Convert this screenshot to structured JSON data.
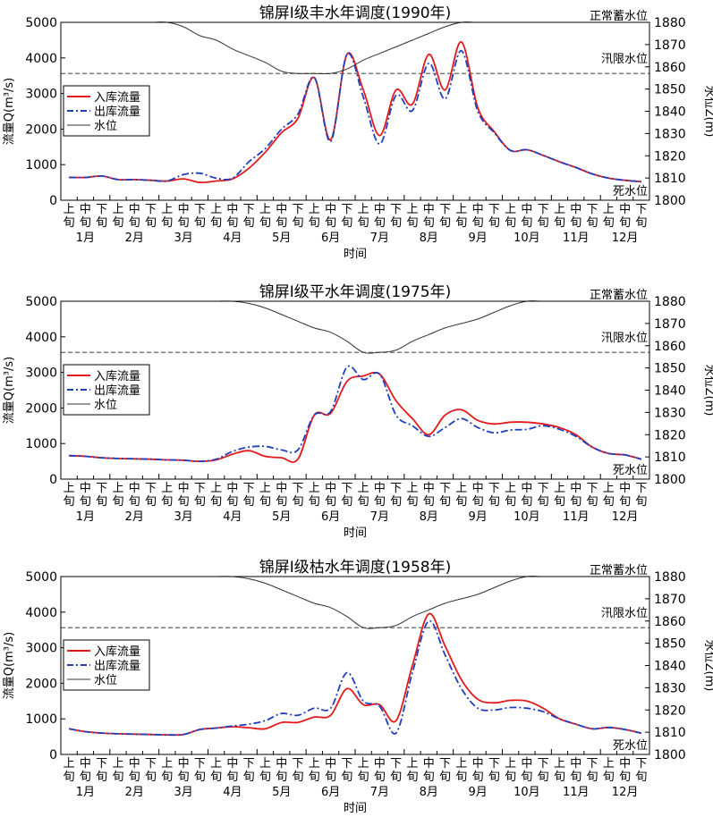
{
  "xlabel": "时间",
  "ylabel_left": "流量Q(m³/s)",
  "ylabel_right": "水位Z(m)",
  "xticks_top": [
    "上",
    "中",
    "下"
  ],
  "xticks_bottom": "旬",
  "months": [
    "1月",
    "2月",
    "3月",
    "4月",
    "5月",
    "6月",
    "7月",
    "8月",
    "9月",
    "10月",
    "11月",
    "12月"
  ],
  "ref_labels": {
    "normal": "正常蓄水位",
    "flood": "汛限水位",
    "dead": "死水位"
  },
  "colors": {
    "inflow": "#e31a1c",
    "outflow": "#1f3fbf",
    "level": "#333333",
    "refline": "#999999"
  },
  "chart_data": [
    {
      "type": "line",
      "title": "锦屏I级丰水年调度(1990年)",
      "x": [
        "1月上旬",
        "1月中旬",
        "1月下旬",
        "2月上旬",
        "2月中旬",
        "2月下旬",
        "3月上旬",
        "3月中旬",
        "3月下旬",
        "4月上旬",
        "4月中旬",
        "4月下旬",
        "5月上旬",
        "5月中旬",
        "5月下旬",
        "6月上旬",
        "6月中旬",
        "6月下旬",
        "7月上旬",
        "7月中旬",
        "7月下旬",
        "8月上旬",
        "8月中旬",
        "8月下旬",
        "9月上旬",
        "9月中旬",
        "9月下旬",
        "10月上旬",
        "10月中旬",
        "10月下旬",
        "11月上旬",
        "11月中旬",
        "11月下旬",
        "12月上旬",
        "12月中旬",
        "12月下旬"
      ],
      "ylim_left": [
        0,
        5000
      ],
      "ylim_right": [
        1800,
        1880
      ],
      "yticks_left": [
        0,
        1000,
        2000,
        3000,
        4000,
        5000
      ],
      "yticks_right": [
        1800,
        1810,
        1820,
        1830,
        1840,
        1850,
        1860,
        1870,
        1880
      ],
      "normal_level": 1880,
      "flood_level": 1857,
      "series": [
        {
          "name": "入库流量",
          "axis": "left",
          "values": [
            640,
            640,
            680,
            580,
            580,
            560,
            540,
            600,
            500,
            540,
            600,
            900,
            1350,
            1900,
            2300,
            3450,
            1700,
            4100,
            3100,
            1820,
            3100,
            2700,
            4100,
            3100,
            4450,
            2600,
            1930,
            1400,
            1420,
            1260,
            1080,
            920,
            740,
            620,
            560,
            520
          ]
        },
        {
          "name": "出库流量",
          "axis": "left",
          "values": [
            640,
            640,
            680,
            580,
            580,
            560,
            540,
            720,
            760,
            620,
            620,
            1080,
            1450,
            2000,
            2420,
            3450,
            1650,
            4100,
            2900,
            1580,
            2950,
            2520,
            3850,
            2850,
            4200,
            2500,
            1900,
            1400,
            1420,
            1260,
            1080,
            920,
            740,
            620,
            560,
            520
          ]
        },
        {
          "name": "水位",
          "axis": "right",
          "values": [
            1880,
            1880,
            1880,
            1880,
            1880,
            1880,
            1880,
            1878,
            1874,
            1872,
            1868,
            1865,
            1862,
            1858,
            1857,
            1857,
            1857,
            1859,
            1863,
            1866,
            1869,
            1872,
            1875,
            1878,
            1880,
            1880,
            1880,
            1880,
            1880,
            1880,
            1880,
            1880,
            1880,
            1880,
            1880,
            1880
          ]
        }
      ]
    },
    {
      "type": "line",
      "title": "锦屏I级平水年调度(1975年)",
      "x": [
        "1月上旬",
        "1月中旬",
        "1月下旬",
        "2月上旬",
        "2月中旬",
        "2月下旬",
        "3月上旬",
        "3月中旬",
        "3月下旬",
        "4月上旬",
        "4月中旬",
        "4月下旬",
        "5月上旬",
        "5月中旬",
        "5月下旬",
        "6月上旬",
        "6月中旬",
        "6月下旬",
        "7月上旬",
        "7月中旬",
        "7月下旬",
        "8月上旬",
        "8月中旬",
        "8月下旬",
        "9月上旬",
        "9月中旬",
        "9月下旬",
        "10月上旬",
        "10月中旬",
        "10月下旬",
        "11月上旬",
        "11月中旬",
        "11月下旬",
        "12月上旬",
        "12月中旬",
        "12月下旬"
      ],
      "ylim_left": [
        0,
        5000
      ],
      "ylim_right": [
        1800,
        1880
      ],
      "yticks_left": [
        0,
        1000,
        2000,
        3000,
        4000,
        5000
      ],
      "yticks_right": [
        1800,
        1810,
        1820,
        1830,
        1840,
        1850,
        1860,
        1870,
        1880
      ],
      "normal_level": 1880,
      "flood_level": 1857,
      "series": [
        {
          "name": "入库流量",
          "axis": "left",
          "values": [
            660,
            640,
            600,
            580,
            570,
            560,
            540,
            530,
            500,
            540,
            700,
            800,
            640,
            600,
            560,
            1800,
            1850,
            2750,
            2900,
            2950,
            2200,
            1700,
            1250,
            1800,
            1950,
            1650,
            1550,
            1600,
            1600,
            1550,
            1450,
            1250,
            900,
            720,
            680,
            560
          ]
        },
        {
          "name": "出库流量",
          "axis": "left",
          "values": [
            660,
            640,
            600,
            580,
            570,
            560,
            540,
            530,
            500,
            560,
            780,
            900,
            920,
            820,
            820,
            1800,
            1900,
            3150,
            2800,
            2950,
            1800,
            1500,
            1200,
            1450,
            1700,
            1450,
            1300,
            1380,
            1400,
            1500,
            1400,
            1200,
            900,
            720,
            680,
            560
          ]
        },
        {
          "name": "水位",
          "axis": "right",
          "values": [
            1880,
            1880,
            1880,
            1880,
            1880,
            1880,
            1880,
            1880,
            1880,
            1880,
            1880,
            1879,
            1877,
            1874,
            1871,
            1868,
            1866,
            1862,
            1857,
            1857,
            1858,
            1862,
            1865,
            1868,
            1870,
            1872,
            1875,
            1878,
            1880,
            1880,
            1880,
            1880,
            1880,
            1880,
            1880,
            1880
          ]
        }
      ]
    },
    {
      "type": "line",
      "title": "锦屏I级枯水年调度(1958年)",
      "x": [
        "1月上旬",
        "1月中旬",
        "1月下旬",
        "2月上旬",
        "2月中旬",
        "2月下旬",
        "3月上旬",
        "3月中旬",
        "3月下旬",
        "4月上旬",
        "4月中旬",
        "4月下旬",
        "5月上旬",
        "5月中旬",
        "5月下旬",
        "6月上旬",
        "6月中旬",
        "6月下旬",
        "7月上旬",
        "7月中旬",
        "7月下旬",
        "8月上旬",
        "8月中旬",
        "8月下旬",
        "9月上旬",
        "9月中旬",
        "9月下旬",
        "10月上旬",
        "10月中旬",
        "10月下旬",
        "11月上旬",
        "11月中旬",
        "11月下旬",
        "12月上旬",
        "12月中旬",
        "12月下旬"
      ],
      "ylim_left": [
        0,
        5000
      ],
      "ylim_right": [
        1800,
        1880
      ],
      "yticks_left": [
        0,
        1000,
        2000,
        3000,
        4000,
        5000
      ],
      "yticks_right": [
        1800,
        1810,
        1820,
        1830,
        1840,
        1850,
        1860,
        1870,
        1880
      ],
      "normal_level": 1880,
      "flood_level": 1857,
      "series": [
        {
          "name": "入库流量",
          "axis": "left",
          "values": [
            720,
            640,
            600,
            580,
            570,
            560,
            550,
            560,
            700,
            740,
            780,
            750,
            720,
            900,
            900,
            1050,
            1100,
            1850,
            1400,
            1400,
            950,
            2500,
            3950,
            3050,
            2100,
            1550,
            1450,
            1520,
            1500,
            1300,
            1000,
            850,
            720,
            760,
            700,
            600
          ]
        },
        {
          "name": "出库流量",
          "axis": "left",
          "values": [
            720,
            640,
            600,
            580,
            570,
            560,
            550,
            560,
            700,
            740,
            800,
            850,
            950,
            1150,
            1100,
            1300,
            1300,
            2300,
            1500,
            1350,
            600,
            2300,
            3750,
            2800,
            1850,
            1300,
            1250,
            1320,
            1300,
            1200,
            1000,
            850,
            720,
            760,
            700,
            600
          ]
        },
        {
          "name": "水位",
          "axis": "right",
          "values": [
            1880,
            1880,
            1880,
            1880,
            1880,
            1880,
            1880,
            1880,
            1880,
            1880,
            1880,
            1879,
            1877,
            1874,
            1871,
            1868,
            1866,
            1862,
            1857,
            1857,
            1858,
            1862,
            1865,
            1868,
            1870,
            1872,
            1875,
            1878,
            1880,
            1880,
            1880,
            1880,
            1880,
            1880,
            1880,
            1880
          ]
        }
      ]
    }
  ]
}
